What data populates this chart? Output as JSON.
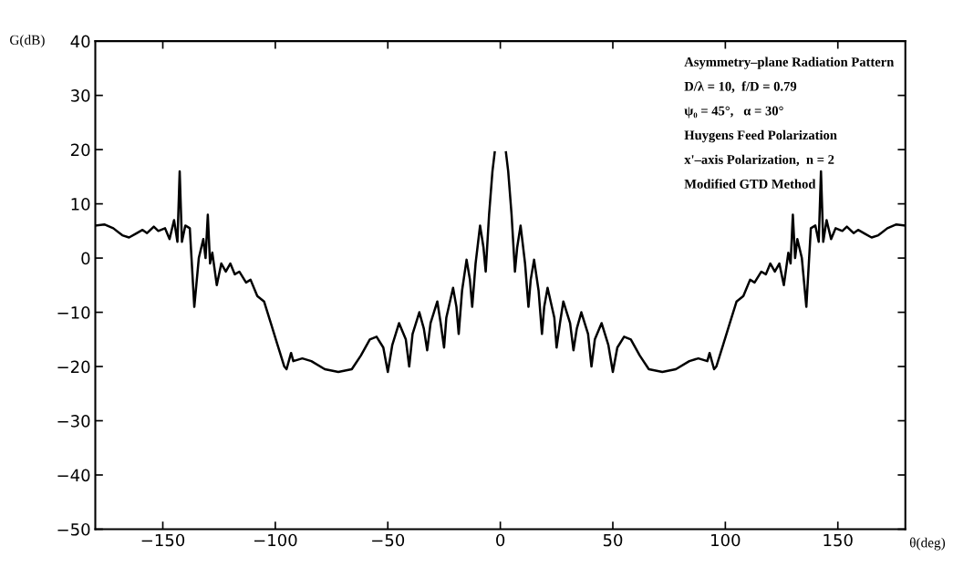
{
  "chart_data": {
    "type": "line",
    "xlabel": "θ(deg)",
    "ylabel": "G(dB)",
    "annotations": [
      "Asymmetry–plane Radiation Pattern",
      "D/λ = 10,  f/D = 0.79",
      "ψ₀ = 45°,   α = 30°",
      "Huygens Feed Polarization",
      "x'–axis Polarization,  n = 2",
      "Modified GTD Method"
    ],
    "xlim": [
      -180,
      180
    ],
    "ylim": [
      -50,
      40
    ],
    "xticks": [
      {
        "value": -150,
        "label": "−150"
      },
      {
        "value": -100,
        "label": "−100"
      },
      {
        "value": -50,
        "label": "−50"
      },
      0,
      50,
      100,
      150
    ],
    "yticks": [
      {
        "value": -50,
        "label": "−50"
      },
      {
        "value": -40,
        "label": "−40"
      },
      {
        "value": -30,
        "label": "−30"
      },
      {
        "value": -20,
        "label": "−20"
      },
      {
        "value": -10,
        "label": "−10"
      },
      0,
      10,
      20,
      30,
      40
    ],
    "grid": false,
    "legend": false,
    "marker": "none",
    "line_style": "solid",
    "series": [
      {
        "color": "#000000",
        "x": [
          -180,
          -176,
          -172,
          -168,
          -165,
          -162,
          -159,
          -157,
          -154,
          -152,
          -149,
          -147,
          -145,
          -143.5,
          -142.5,
          -141.5,
          -140,
          -138,
          -136,
          -134,
          -132,
          -131,
          -130,
          -129,
          -128,
          -126,
          -124,
          -122,
          -120,
          -118,
          -116,
          -113,
          -111,
          -108,
          -105,
          -102,
          -99,
          -96,
          -95,
          -93,
          -92,
          -88,
          -84,
          -78,
          -72,
          -66,
          -62,
          -58,
          -55,
          -52,
          -50,
          -48,
          -45,
          -42,
          -40.5,
          -39,
          -36,
          -34,
          -32.5,
          -31,
          -28,
          -26.5,
          -25,
          -24,
          -21,
          -19.5,
          -18.5,
          -17,
          -15,
          -13.5,
          -12.5,
          -11,
          -9,
          -7.5,
          -6.5,
          -5,
          -3.5,
          -2.5,
          0,
          2.5,
          3.5,
          5,
          6.5,
          7.5,
          9,
          11,
          12.5,
          13.5,
          15,
          17,
          18.5,
          19.5,
          21,
          24,
          25,
          26.5,
          28,
          31,
          32.5,
          34,
          36,
          39,
          40.5,
          42,
          45,
          48,
          50,
          52,
          55,
          58,
          62,
          66,
          72,
          78,
          84,
          88,
          92,
          93,
          95,
          96,
          99,
          102,
          105,
          108,
          111,
          113,
          116,
          118,
          120,
          122,
          124,
          126,
          128,
          129,
          130,
          131,
          132,
          134,
          136,
          138,
          140,
          141.5,
          142.5,
          143.5,
          145,
          147,
          149,
          152,
          154,
          157,
          159,
          162,
          165,
          168,
          172,
          176,
          180
        ],
        "values": [
          6,
          6.2,
          5.5,
          4.2,
          3.8,
          4.5,
          5.2,
          4.6,
          5.8,
          5,
          5.5,
          3.5,
          7,
          3,
          16,
          3,
          6,
          5.5,
          -9,
          0,
          3.5,
          0,
          8,
          -1,
          1,
          -5,
          -1,
          -2.5,
          -1,
          -3,
          -2.5,
          -4.5,
          -4,
          -7,
          -8,
          -12,
          -16,
          -20,
          -20.5,
          -17.5,
          -19,
          -18.5,
          -19,
          -20.5,
          -21,
          -20.5,
          -18,
          -15,
          -14.5,
          -16.5,
          -21,
          -16,
          -12,
          -15,
          -20,
          -14,
          -10,
          -13,
          -17,
          -12,
          -8,
          -12,
          -16.5,
          -11,
          -5.5,
          -9,
          -14,
          -6,
          -0.3,
          -4,
          -9,
          -1,
          6,
          2,
          -2.5,
          8,
          16,
          19.5,
          null,
          19.5,
          16,
          8,
          -2.5,
          2,
          6,
          -1,
          -9,
          -4,
          -0.3,
          -6,
          -14,
          -9,
          -5.5,
          -11,
          -16.5,
          -12,
          -8,
          -12,
          -17,
          -13,
          -10,
          -14,
          -20,
          -15,
          -12,
          -16,
          -21,
          -16.5,
          -14.5,
          -15,
          -18,
          -20.5,
          -21,
          -20.5,
          -19,
          -18.5,
          -19,
          -17.5,
          -20.5,
          -20,
          -16,
          -12,
          -8,
          -7,
          -4,
          -4.5,
          -2.5,
          -3,
          -1,
          -2.5,
          -1,
          -5,
          1,
          -1,
          8,
          0,
          3.5,
          0,
          -9,
          5.5,
          6,
          3,
          16,
          3,
          7,
          3.5,
          5.5,
          5,
          5.8,
          4.6,
          5.2,
          4.5,
          3.8,
          4.2,
          5.5,
          6.2,
          6
        ]
      }
    ]
  }
}
